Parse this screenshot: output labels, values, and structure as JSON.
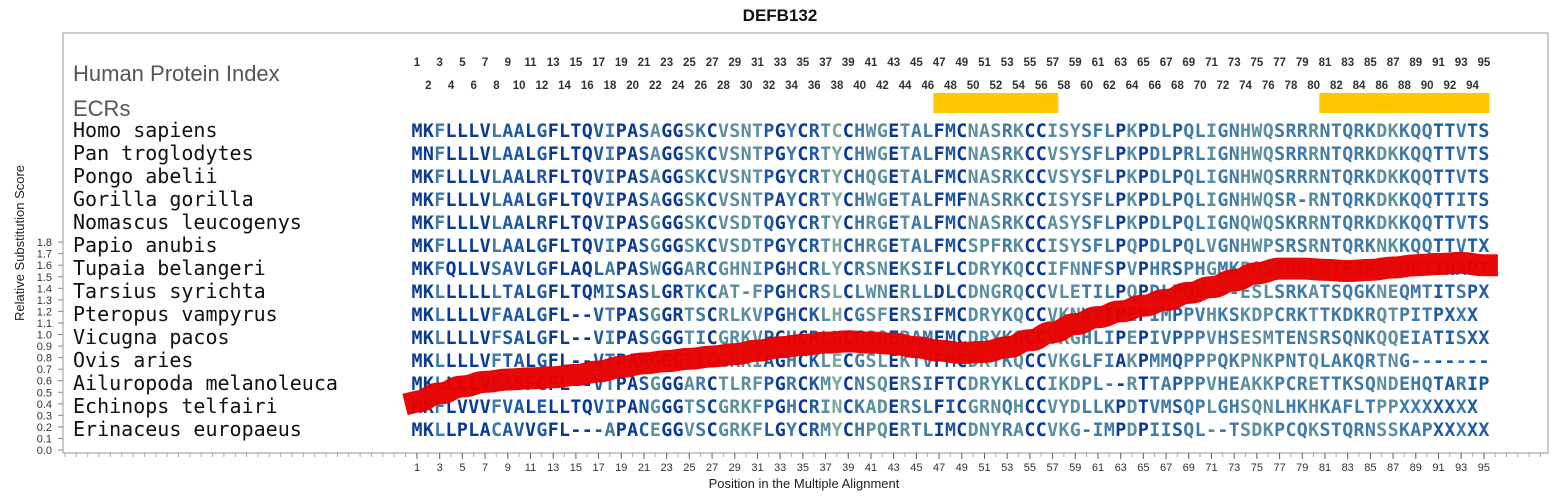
{
  "chart_data": {
    "type": "line",
    "title": "DEFB132",
    "xlabel": "Position in the Multiple Alignment",
    "ylabel": "Relative Substitution Score",
    "ylim": [
      0.0,
      1.85
    ],
    "yticks": [
      "0.0",
      "0.1",
      "0.2",
      "0.3",
      "0.4",
      "0.5",
      "0.6",
      "0.7",
      "0.8",
      "0.9",
      "1.0",
      "1.1",
      "1.2",
      "1.3",
      "1.4",
      "1.5",
      "1.6",
      "1.7",
      "1.8"
    ],
    "human_protein_index_label": "Human Protein Index",
    "ecrs_label": "ECRs",
    "positions_top_odd": [
      "1",
      "3",
      "5",
      "7",
      "9",
      "11",
      "13",
      "15",
      "17",
      "19",
      "21",
      "23",
      "25",
      "27",
      "29",
      "31",
      "33",
      "35",
      "37",
      "39",
      "41",
      "43",
      "45",
      "47",
      "49",
      "51",
      "53",
      "55",
      "57",
      "59",
      "61",
      "63",
      "65",
      "67",
      "69",
      "71",
      "73",
      "75",
      "77",
      "79",
      "81",
      "83",
      "85",
      "87",
      "89",
      "91",
      "93",
      "95"
    ],
    "positions_top_even": [
      "2",
      "4",
      "6",
      "8",
      "10",
      "12",
      "14",
      "16",
      "18",
      "20",
      "22",
      "24",
      "26",
      "28",
      "30",
      "32",
      "34",
      "36",
      "38",
      "40",
      "42",
      "44",
      "46",
      "48",
      "50",
      "52",
      "54",
      "56",
      "58",
      "60",
      "62",
      "64",
      "66",
      "68",
      "70",
      "72",
      "74",
      "76",
      "78",
      "80",
      "82",
      "84",
      "86",
      "88",
      "90",
      "92",
      "94"
    ],
    "positions_bottom": [
      "1",
      "3",
      "5",
      "7",
      "9",
      "11",
      "13",
      "15",
      "17",
      "19",
      "21",
      "23",
      "25",
      "27",
      "29",
      "31",
      "33",
      "35",
      "37",
      "39",
      "41",
      "43",
      "45",
      "47",
      "49",
      "51",
      "53",
      "55",
      "57",
      "59",
      "61",
      "63",
      "65",
      "67",
      "69",
      "71",
      "73",
      "75",
      "77",
      "79",
      "81",
      "83",
      "85",
      "87",
      "89",
      "91",
      "93",
      "95"
    ],
    "ecr_regions": [
      {
        "start": 47,
        "end": 57,
        "color": "#ffc800"
      },
      {
        "start": 81,
        "end": 95,
        "color": "#ffc800"
      }
    ],
    "series": [
      {
        "color": "#e60000",
        "x": [
          1,
          3,
          5,
          7,
          9,
          11,
          13,
          15,
          17,
          19,
          21,
          23,
          25,
          27,
          29,
          31,
          33,
          35,
          37,
          39,
          41,
          43,
          45,
          47,
          49,
          51,
          53,
          55,
          57,
          59,
          61,
          63,
          65,
          67,
          69,
          71,
          73,
          75,
          77,
          79,
          81,
          83,
          85,
          87,
          89,
          91,
          93,
          95
        ],
        "y": [
          0.42,
          0.49,
          0.55,
          0.59,
          0.61,
          0.62,
          0.63,
          0.65,
          0.68,
          0.72,
          0.75,
          0.77,
          0.79,
          0.81,
          0.83,
          0.86,
          0.89,
          0.91,
          0.93,
          0.94,
          0.93,
          0.92,
          0.89,
          0.86,
          0.84,
          0.85,
          0.89,
          0.95,
          1.02,
          1.09,
          1.15,
          1.2,
          1.25,
          1.3,
          1.36,
          1.41,
          1.47,
          1.53,
          1.57,
          1.57,
          1.56,
          1.55,
          1.56,
          1.58,
          1.6,
          1.61,
          1.62,
          1.6
        ]
      }
    ],
    "sequences": [
      {
        "species": "Homo sapiens",
        "seq": "MKFLLLVLAALGFLTQVIPASAGGSKCVSNTPGYCRTCCHWGETALFMCNASRKCCISYSFLPKPDLPQLIGNHWQSRRRNTQRKDKKQQTTVTS"
      },
      {
        "species": "Pan troglodytes",
        "seq": "MNFLLLVLAALGFLTQVIPASAGGSKCVSNTPGYCRTYCHWGETALFMCNASRKCCVSYSFLPKPDLPRLIGNHWQSRRRNTQRKDKKQQTTVTS"
      },
      {
        "species": "Pongo abelii",
        "seq": "MKFLLLVLAALRFLTQVIPASAGGSKCVSNTPGYCRTYCHQGETALFMCNASRKCCVSYSFLPKPDLPQLIGNHWQSRRRNTQRKDKKQQTTVTS"
      },
      {
        "species": "Gorilla gorilla",
        "seq": "MKFLLLVLAALGFLTQVIPASAGGSKCVSNTPAYCRTYCHWGETALFMFNASRKCCISYSFLPKPDLPQLIGNHWQSR-RNTQRKDKKQQTTITS"
      },
      {
        "species": "Nomascus leucogenys",
        "seq": "MKFLLLVLAALRFLTQVIPASGGGSKCVSDTQGYCRTYCHRGETALFMCNASRKCCASYSFLPKPDLPQLIGNQWQSKRRNTQRKDKKQQTTVTS"
      },
      {
        "species": "Papio anubis",
        "seq": "MKFLLLVLAALGFLTQVIPASGGGSKCVSDTPGYCRTHCHRGETALFMCSPFRKCCISYSFLPQPDLPQLVGNHWPSRSRNTQRKNKKQQTTVTX"
      },
      {
        "species": "Tupaia belangeri",
        "seq": "MKFQLLVSAVLGFLAQLAPASWGGARCGHNIPGHCRLYCRSNEKSIFLCDRYKQCCIFNNFSPVPHRSPHGMKPQSSHRKNTESKKSQRTTNAPT"
      },
      {
        "species": "Tarsius syrichta",
        "seq": "MKLLLLLLTALGFLTQMISASLGRTKCAT-FPGHCRSLCLWNERLLDLCDNGRQCCVLETILPQPDLPQV---ESLSRKATSQGKNEQMTITSPX"
      },
      {
        "species": "Pteropus vampyrus",
        "seq": "MKLLLLVFAALGFL--VTPASGGRTSCRLKVPGHCKLHCGSFERSIFMCDRYKQCCVKNVYIPEPIMPPVHKSKDPCRKTTKDKRQTPITPXXX"
      },
      {
        "species": "Vicugna pacos",
        "seq": "MKLLLLVFSALGFL--VIPASGGGTICGRKVPGHCRLHCGSQERAMFMCDRYKQCCVKGHLIPEPIVPPPVHSESMTENSRSQNKQQEIATISXX"
      },
      {
        "species": "Ovis aries",
        "seq": "MKLLLLVFTALGFL--VTPAKGGGTICGRKIAGHCKLECGSLEKTVFMCDRYKQCCVKGLFIAKPMMQPPPQKPNKPNTQLAKQRTNG-------"
      },
      {
        "species": "Ailuropoda melanoleuca",
        "seq": "MKLLLLVFASFGFL--VTPASGGGARCTLRFPGRCKMYCNSQERSIFTCDRYKLCCIKDPL--RTTAPPPVHEAKKPCRETTKSQNDEHQTARIP"
      },
      {
        "species": "Echinops telfairi",
        "seq": "MKFLVVVFVALELLTQVIPANGGGTSCGRKFPGHCRINCKADERSLFICGRNQHCCVYDLLKPDTVMSQPLGHSQNLHKHKAFLTPPXXXXXXX"
      },
      {
        "species": "Erinaceus europaeus",
        "seq": "MKLLPLACAVVGFL---APACEGGVSCGRKFLGYCRMYCHPQERTLIMCDNYRACCVKG-IMPDPIISQL--TSDKPCQKSTQRNSSKAPXXXXX"
      }
    ]
  }
}
